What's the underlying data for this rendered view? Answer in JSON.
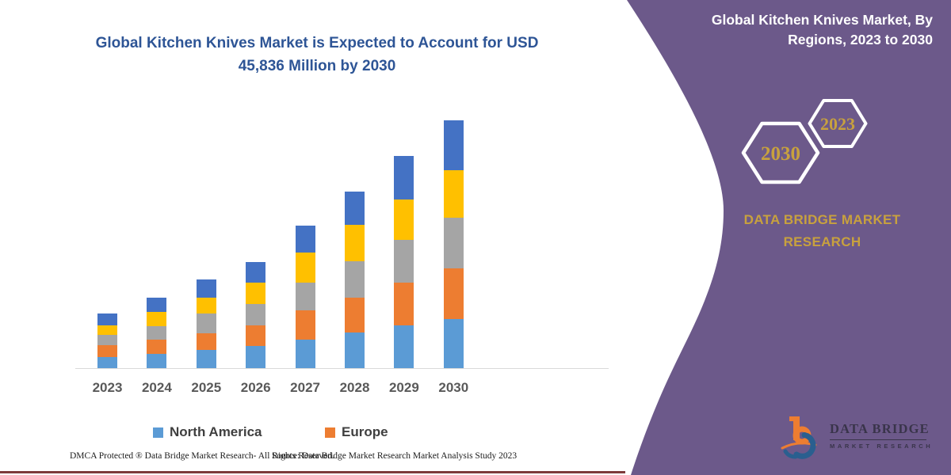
{
  "header": {
    "title_line1": "Global Kitchen Knives Market is Expected to Account for USD",
    "title_line2": "45,836 Million by 2030"
  },
  "chart_data": {
    "type": "bar",
    "stacked": true,
    "title": "Global Kitchen Knives Market is Expected to Account for USD 45,836 Million by 2030",
    "unit": "USD Million",
    "categories": [
      "2023",
      "2024",
      "2025",
      "2026",
      "2027",
      "2028",
      "2029",
      "2030"
    ],
    "series": [
      {
        "name": "North America",
        "color": "#5B9BD5",
        "values": [
          2100,
          2590,
          3330,
          4060,
          5280,
          6640,
          7960,
          9090
        ]
      },
      {
        "name": "Europe",
        "color": "#ED7D31",
        "values": [
          2200,
          2690,
          3180,
          3910,
          5380,
          6450,
          7820,
          9380
        ]
      },
      {
        "name": "Series 3 (gray, unlabeled)",
        "color": "#A5A5A5",
        "values": [
          1860,
          2450,
          3670,
          3910,
          5130,
          6740,
          7960,
          9430
        ]
      },
      {
        "name": "Series 4 (yellow, unlabeled)",
        "color": "#FFC000",
        "values": [
          1800,
          2690,
          2930,
          3910,
          5530,
          6700,
          7520,
          8750
        ]
      },
      {
        "name": "Series 5 (dark blue, unlabeled)",
        "color": "#4472C4",
        "values": [
          2100,
          2640,
          3270,
          3910,
          4990,
          6200,
          8020,
          9186
        ]
      }
    ],
    "totals": [
      10060,
      13060,
      16380,
      19700,
      26310,
      32730,
      39280,
      45836
    ],
    "ylim": [
      0,
      46000
    ],
    "grid": false,
    "y_axis_visible": false,
    "legend_position": "bottom"
  },
  "legend": [
    {
      "label": "North America",
      "color": "#5B9BD5"
    },
    {
      "label": "Europe",
      "color": "#ED7D31"
    }
  ],
  "footer": {
    "dmca": "DMCA Protected ® Data Bridge Market Research-  All Rights Reserved.",
    "source": "Source: Data Bridge Market Research  Market Analysis Study 2023"
  },
  "panel": {
    "title_line1": "Global Kitchen Knives Market, By",
    "title_line2": "Regions, 2023 to 2030",
    "hexagons": [
      {
        "label": "2030"
      },
      {
        "label": "2023"
      }
    ],
    "brand_line1": "DATA BRIDGE MARKET",
    "brand_line2": "RESEARCH",
    "logo": {
      "title": "DATA BRIDGE",
      "subtitle": "MARKET RESEARCH"
    },
    "colors": {
      "background": "#6C598A",
      "gold": "#C8A13E"
    }
  }
}
